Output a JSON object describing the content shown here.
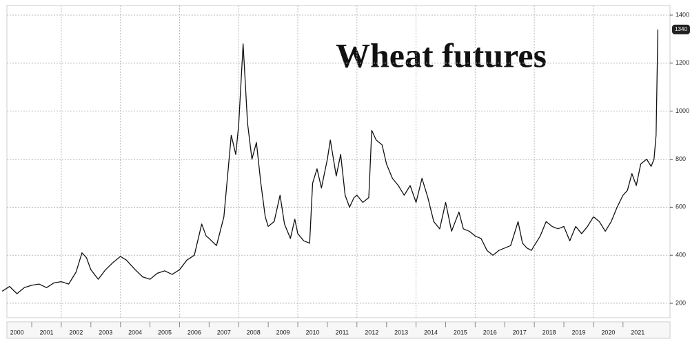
{
  "chart_data": {
    "type": "line",
    "title": "Wheat futures",
    "x": [
      2000.0,
      2000.25,
      2000.5,
      2000.75,
      2001.0,
      2001.25,
      2001.5,
      2001.75,
      2002.0,
      2002.25,
      2002.5,
      2002.7,
      2002.85,
      2003.0,
      2003.25,
      2003.5,
      2003.75,
      2004.0,
      2004.2,
      2004.5,
      2004.75,
      2005.0,
      2005.25,
      2005.5,
      2005.75,
      2006.0,
      2006.25,
      2006.5,
      2006.75,
      2006.9,
      2007.0,
      2007.25,
      2007.5,
      2007.75,
      2007.9,
      2008.0,
      2008.15,
      2008.3,
      2008.45,
      2008.6,
      2008.75,
      2008.9,
      2009.0,
      2009.2,
      2009.4,
      2009.55,
      2009.75,
      2009.9,
      2010.0,
      2010.2,
      2010.4,
      2010.5,
      2010.65,
      2010.8,
      2011.0,
      2011.1,
      2011.3,
      2011.45,
      2011.6,
      2011.75,
      2011.9,
      2012.0,
      2012.2,
      2012.4,
      2012.5,
      2012.65,
      2012.85,
      2013.0,
      2013.2,
      2013.4,
      2013.6,
      2013.8,
      2014.0,
      2014.2,
      2014.4,
      2014.6,
      2014.8,
      2015.0,
      2015.2,
      2015.45,
      2015.6,
      2015.8,
      2016.0,
      2016.2,
      2016.4,
      2016.6,
      2016.8,
      2017.0,
      2017.2,
      2017.45,
      2017.6,
      2017.75,
      2017.9,
      2018.0,
      2018.2,
      2018.4,
      2018.6,
      2018.8,
      2019.0,
      2019.2,
      2019.4,
      2019.6,
      2019.8,
      2020.0,
      2020.2,
      2020.4,
      2020.6,
      2020.8,
      2021.0,
      2021.15,
      2021.3,
      2021.45,
      2021.6,
      2021.8,
      2021.95,
      2022.05,
      2022.12,
      2022.18
    ],
    "values": [
      250,
      270,
      240,
      265,
      275,
      280,
      265,
      285,
      290,
      280,
      330,
      410,
      390,
      340,
      300,
      340,
      370,
      395,
      380,
      340,
      310,
      300,
      325,
      335,
      320,
      340,
      380,
      400,
      530,
      480,
      470,
      440,
      560,
      900,
      820,
      940,
      1280,
      950,
      800,
      870,
      700,
      560,
      520,
      540,
      650,
      530,
      470,
      550,
      490,
      460,
      450,
      700,
      760,
      680,
      800,
      880,
      730,
      820,
      650,
      600,
      640,
      650,
      620,
      640,
      920,
      880,
      860,
      780,
      720,
      690,
      650,
      690,
      620,
      720,
      640,
      540,
      510,
      620,
      500,
      580,
      510,
      500,
      480,
      470,
      420,
      400,
      420,
      430,
      440,
      540,
      450,
      430,
      420,
      440,
      480,
      540,
      520,
      510,
      520,
      460,
      520,
      490,
      520,
      560,
      540,
      500,
      540,
      600,
      650,
      670,
      740,
      690,
      780,
      800,
      770,
      800,
      900,
      1340
    ],
    "color": "#111111",
    "xlim": [
      2000.16,
      2022.59
    ],
    "xticks": [
      2000,
      2001,
      2002,
      2003,
      2004,
      2005,
      2006,
      2007,
      2008,
      2009,
      2010,
      2011,
      2012,
      2013,
      2014,
      2015,
      2016,
      2017,
      2018,
      2019,
      2020,
      2021
    ],
    "ylim": [
      140,
      1440
    ],
    "yticks": [
      200,
      400,
      600,
      800,
      1000,
      1200,
      1400
    ],
    "grid": true
  }
}
